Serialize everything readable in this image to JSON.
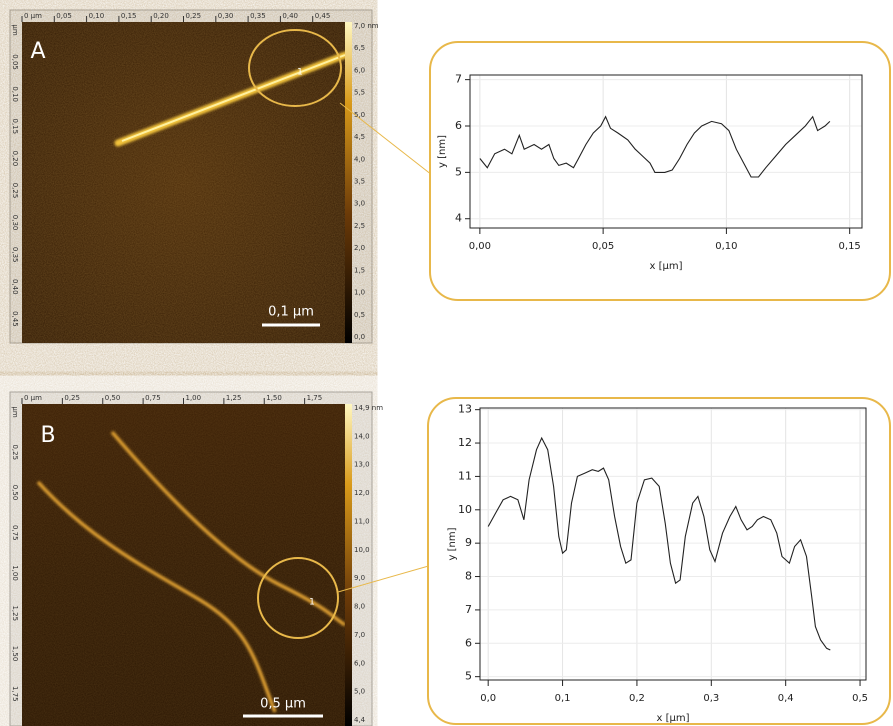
{
  "chart_data": [
    {
      "type": "line",
      "xlabel": "x [µm]",
      "ylabel": "y [nm]",
      "x": [
        0,
        0.003,
        0.006,
        0.01,
        0.013,
        0.016,
        0.018,
        0.022,
        0.025,
        0.028,
        0.03,
        0.032,
        0.035,
        0.038,
        0.04,
        0.043,
        0.046,
        0.049,
        0.051,
        0.053,
        0.056,
        0.06,
        0.063,
        0.066,
        0.069,
        0.071,
        0.075,
        0.078,
        0.081,
        0.084,
        0.087,
        0.09,
        0.094,
        0.098,
        0.101,
        0.104,
        0.107,
        0.11,
        0.113,
        0.116,
        0.12,
        0.124,
        0.128,
        0.132,
        0.135,
        0.137,
        0.14,
        0.142
      ],
      "series": [
        {
          "color": "#222222",
          "values": [
            5.3,
            5.1,
            5.4,
            5.5,
            5.4,
            5.8,
            5.5,
            5.6,
            5.5,
            5.6,
            5.3,
            5.15,
            5.2,
            5.1,
            5.3,
            5.6,
            5.85,
            6.0,
            6.2,
            5.95,
            5.85,
            5.7,
            5.5,
            5.35,
            5.2,
            5.0,
            5.0,
            5.05,
            5.3,
            5.6,
            5.85,
            6.0,
            6.1,
            6.05,
            5.9,
            5.5,
            5.2,
            4.9,
            4.9,
            5.1,
            5.35,
            5.6,
            5.8,
            6.0,
            6.2,
            5.9,
            6.0,
            6.1
          ]
        }
      ],
      "xlim": [
        -0.004,
        0.155
      ],
      "ylim": [
        3.8,
        7.1
      ],
      "xticks": [
        {
          "value": 0,
          "label": "0,00"
        },
        {
          "value": 0.05,
          "label": "0,05"
        },
        {
          "value": 0.1,
          "label": "0,10"
        },
        {
          "value": 0.15,
          "label": "0,15"
        }
      ],
      "yticks": [
        4,
        5,
        6,
        7
      ],
      "grid": true
    },
    {
      "type": "line",
      "xlabel": "x [µm]",
      "ylabel": "y [nm]",
      "x": [
        0,
        0.01,
        0.02,
        0.03,
        0.04,
        0.048,
        0.055,
        0.065,
        0.072,
        0.08,
        0.088,
        0.095,
        0.1,
        0.105,
        0.112,
        0.12,
        0.13,
        0.14,
        0.148,
        0.155,
        0.162,
        0.17,
        0.178,
        0.185,
        0.192,
        0.2,
        0.21,
        0.22,
        0.23,
        0.238,
        0.245,
        0.252,
        0.258,
        0.265,
        0.275,
        0.282,
        0.29,
        0.298,
        0.305,
        0.315,
        0.325,
        0.333,
        0.34,
        0.348,
        0.355,
        0.362,
        0.37,
        0.38,
        0.388,
        0.395,
        0.405,
        0.412,
        0.42,
        0.428,
        0.435,
        0.44,
        0.447,
        0.455,
        0.46
      ],
      "series": [
        {
          "color": "#222222",
          "values": [
            9.5,
            9.9,
            10.3,
            10.4,
            10.3,
            9.7,
            10.9,
            11.8,
            12.15,
            11.8,
            10.7,
            9.2,
            8.7,
            8.8,
            10.2,
            11.0,
            11.1,
            11.2,
            11.15,
            11.25,
            10.9,
            9.8,
            8.9,
            8.4,
            8.5,
            10.2,
            10.9,
            10.95,
            10.7,
            9.6,
            8.4,
            7.8,
            7.9,
            9.2,
            10.2,
            10.4,
            9.8,
            8.8,
            8.45,
            9.3,
            9.8,
            10.1,
            9.7,
            9.4,
            9.5,
            9.7,
            9.8,
            9.7,
            9.3,
            8.6,
            8.4,
            8.9,
            9.1,
            8.6,
            7.4,
            6.5,
            6.1,
            5.85,
            5.8
          ]
        }
      ],
      "xlim": [
        -0.011,
        0.508
      ],
      "ylim": [
        4.9,
        13.05
      ],
      "xticks": [
        {
          "value": 0,
          "label": "0,0"
        },
        {
          "value": 0.1,
          "label": "0,1"
        },
        {
          "value": 0.2,
          "label": "0,2"
        },
        {
          "value": 0.3,
          "label": "0,3"
        },
        {
          "value": 0.4,
          "label": "0,4"
        },
        {
          "value": 0.5,
          "label": "0,5"
        }
      ],
      "yticks": [
        5,
        6,
        7,
        8,
        9,
        10,
        11,
        12,
        13
      ],
      "grid": true
    }
  ],
  "images": [
    {
      "label": "A",
      "scale_bar": "0,1 µm",
      "marker": "1",
      "top_ruler": [
        "0 µm",
        "0,05",
        "0,10",
        "0,15",
        "0,20",
        "0,25",
        "0,30",
        "0,35",
        "0,40",
        "0,45"
      ],
      "left_ruler": [
        "µm",
        "0,05",
        "0,10",
        "0,15",
        "0,20",
        "0,25",
        "0,30",
        "0,35",
        "0,40",
        "0,45"
      ],
      "colorbar": [
        "7,0 nm",
        "6,5",
        "6,0",
        "5,5",
        "5,0",
        "4,5",
        "4,0",
        "3,5",
        "3,0",
        "2,5",
        "2,0",
        "1,5",
        "1,0",
        "0,5",
        "0,0"
      ]
    },
    {
      "label": "B",
      "scale_bar": "0,5 µm",
      "marker": "1",
      "top_ruler": [
        "0 µm",
        "0,25",
        "0,50",
        "0,75",
        "1,00",
        "1,25",
        "1,50",
        "1,75"
      ],
      "left_ruler": [
        "µm",
        "0,25",
        "0,50",
        "0,75",
        "1,00",
        "1,25",
        "1,50",
        "1,75"
      ],
      "colorbar": [
        "14,9 nm",
        "14,0",
        "13,0",
        "12,0",
        "11,0",
        "10,0",
        "9,0",
        "8,0",
        "7,0",
        "6,0",
        "5,0",
        "4,4"
      ]
    }
  ]
}
